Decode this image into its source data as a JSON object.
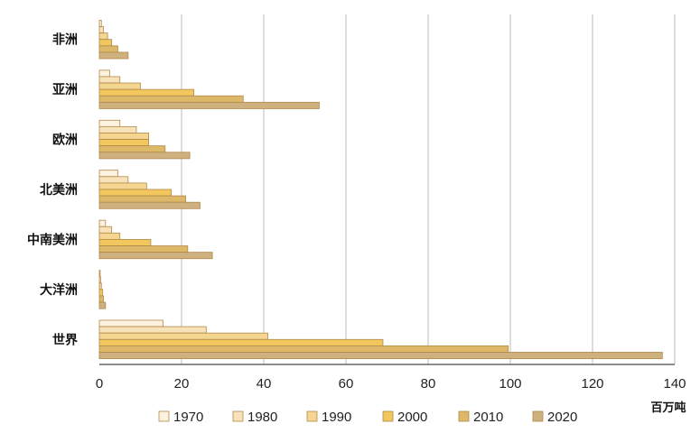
{
  "chart_data": {
    "type": "bar",
    "orientation": "horizontal",
    "categories": [
      "非洲",
      "亚洲",
      "欧洲",
      "北美洲",
      "中南美洲",
      "大洋洲",
      "世界"
    ],
    "series": [
      {
        "name": "1970",
        "color": "#fcf2df",
        "values": [
          0.5,
          2.5,
          5.0,
          4.5,
          1.5,
          0.2,
          15.5
        ]
      },
      {
        "name": "1980",
        "color": "#f8e2ba",
        "values": [
          1.0,
          5.0,
          9.0,
          7.0,
          3.0,
          0.3,
          26.0
        ]
      },
      {
        "name": "1990",
        "color": "#f5d690",
        "values": [
          2.0,
          10.0,
          12.0,
          11.5,
          5.0,
          0.5,
          41.0
        ]
      },
      {
        "name": "2000",
        "color": "#f1c75e",
        "values": [
          3.0,
          23.0,
          12.0,
          17.5,
          12.5,
          0.8,
          69.0
        ]
      },
      {
        "name": "2010",
        "color": "#ddb868",
        "values": [
          4.5,
          35.0,
          16.0,
          21.0,
          21.5,
          1.0,
          99.5
        ]
      },
      {
        "name": "2020",
        "color": "#cfb07f",
        "values": [
          7.0,
          53.5,
          22.0,
          24.5,
          27.5,
          1.5,
          137.0
        ]
      }
    ],
    "xlim": [
      0,
      140
    ],
    "xticks": [
      "0",
      "20",
      "40",
      "60",
      "80",
      "100",
      "120",
      "140"
    ],
    "xlabel": "百万吨",
    "grid": "vertical",
    "legend_position": "bottom"
  }
}
